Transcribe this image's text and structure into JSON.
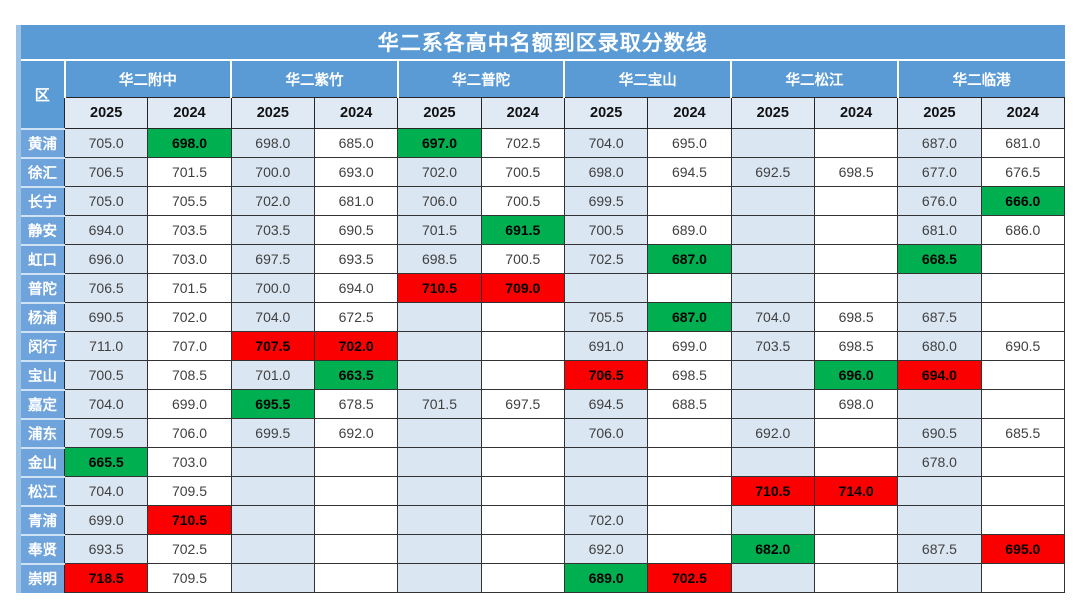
{
  "title": "华二系各高中名额到区录取分数线",
  "colors": {
    "header_blue": "#5b9bd5",
    "district_blue": "#6fa3dc",
    "year_blue": "#e0eaf5",
    "light_blue": "#dae6f2",
    "green": "#00b050",
    "red": "#fb0000",
    "text_dark": "#3f3f3f"
  },
  "table": {
    "corner_label": "区",
    "schools": [
      "华二附中",
      "华二紫竹",
      "华二普陀",
      "华二宝山",
      "华二松江",
      "华二临港"
    ],
    "year_labels": [
      "2025",
      "2024"
    ],
    "rows": [
      {
        "district": "黄浦",
        "cells": [
          {
            "v": "705.0"
          },
          {
            "v": "698.0",
            "hl": "green"
          },
          {
            "v": "698.0"
          },
          {
            "v": "685.0"
          },
          {
            "v": "697.0",
            "hl": "green"
          },
          {
            "v": "702.5"
          },
          {
            "v": "704.0"
          },
          {
            "v": "695.0"
          },
          {
            "v": ""
          },
          {
            "v": ""
          },
          {
            "v": "687.0"
          },
          {
            "v": "681.0"
          }
        ]
      },
      {
        "district": "徐汇",
        "cells": [
          {
            "v": "706.5"
          },
          {
            "v": "701.5"
          },
          {
            "v": "700.0"
          },
          {
            "v": "693.0"
          },
          {
            "v": "702.0"
          },
          {
            "v": "700.5"
          },
          {
            "v": "698.0"
          },
          {
            "v": "694.5"
          },
          {
            "v": "692.5"
          },
          {
            "v": "698.5"
          },
          {
            "v": "677.0"
          },
          {
            "v": "676.5"
          }
        ]
      },
      {
        "district": "长宁",
        "cells": [
          {
            "v": "705.0"
          },
          {
            "v": "705.5"
          },
          {
            "v": "702.0"
          },
          {
            "v": "681.0"
          },
          {
            "v": "706.0"
          },
          {
            "v": "700.5"
          },
          {
            "v": "699.5"
          },
          {
            "v": ""
          },
          {
            "v": ""
          },
          {
            "v": ""
          },
          {
            "v": "676.0"
          },
          {
            "v": "666.0",
            "hl": "green"
          }
        ]
      },
      {
        "district": "静安",
        "cells": [
          {
            "v": "694.0"
          },
          {
            "v": "703.5"
          },
          {
            "v": "703.5"
          },
          {
            "v": "690.5"
          },
          {
            "v": "701.5"
          },
          {
            "v": "691.5",
            "hl": "green"
          },
          {
            "v": "700.5"
          },
          {
            "v": "689.0"
          },
          {
            "v": ""
          },
          {
            "v": ""
          },
          {
            "v": "681.0"
          },
          {
            "v": "686.0"
          }
        ]
      },
      {
        "district": "虹口",
        "cells": [
          {
            "v": "696.0"
          },
          {
            "v": "703.0"
          },
          {
            "v": "697.5"
          },
          {
            "v": "693.5"
          },
          {
            "v": "698.5"
          },
          {
            "v": "700.5"
          },
          {
            "v": "702.5"
          },
          {
            "v": "687.0",
            "hl": "green"
          },
          {
            "v": ""
          },
          {
            "v": ""
          },
          {
            "v": "668.5",
            "hl": "green"
          },
          {
            "v": ""
          }
        ]
      },
      {
        "district": "普陀",
        "cells": [
          {
            "v": "706.5"
          },
          {
            "v": "701.5"
          },
          {
            "v": "700.0"
          },
          {
            "v": "694.0"
          },
          {
            "v": "710.5",
            "hl": "red"
          },
          {
            "v": "709.0",
            "hl": "red"
          },
          {
            "v": ""
          },
          {
            "v": ""
          },
          {
            "v": ""
          },
          {
            "v": ""
          },
          {
            "v": ""
          },
          {
            "v": ""
          }
        ]
      },
      {
        "district": "杨浦",
        "cells": [
          {
            "v": "690.5"
          },
          {
            "v": "702.0"
          },
          {
            "v": "704.0"
          },
          {
            "v": "672.5"
          },
          {
            "v": ""
          },
          {
            "v": ""
          },
          {
            "v": "705.5"
          },
          {
            "v": "687.0",
            "hl": "green"
          },
          {
            "v": "704.0"
          },
          {
            "v": "698.5"
          },
          {
            "v": "687.5"
          },
          {
            "v": ""
          }
        ]
      },
      {
        "district": "闵行",
        "cells": [
          {
            "v": "711.0"
          },
          {
            "v": "707.0"
          },
          {
            "v": "707.5",
            "hl": "red"
          },
          {
            "v": "702.0",
            "hl": "red"
          },
          {
            "v": ""
          },
          {
            "v": ""
          },
          {
            "v": "691.0"
          },
          {
            "v": "699.0"
          },
          {
            "v": "703.5"
          },
          {
            "v": "698.5"
          },
          {
            "v": "680.0"
          },
          {
            "v": "690.5"
          }
        ]
      },
      {
        "district": "宝山",
        "cells": [
          {
            "v": "700.5"
          },
          {
            "v": "708.5"
          },
          {
            "v": "701.0"
          },
          {
            "v": "663.5",
            "hl": "green"
          },
          {
            "v": ""
          },
          {
            "v": ""
          },
          {
            "v": "706.5",
            "hl": "red"
          },
          {
            "v": "698.5"
          },
          {
            "v": ""
          },
          {
            "v": "696.0",
            "hl": "green"
          },
          {
            "v": "694.0",
            "hl": "red"
          },
          {
            "v": ""
          }
        ]
      },
      {
        "district": "嘉定",
        "cells": [
          {
            "v": "704.0"
          },
          {
            "v": "699.0"
          },
          {
            "v": "695.5",
            "hl": "green"
          },
          {
            "v": "678.5"
          },
          {
            "v": "701.5"
          },
          {
            "v": "697.5"
          },
          {
            "v": "694.5"
          },
          {
            "v": "688.5"
          },
          {
            "v": ""
          },
          {
            "v": "698.0"
          },
          {
            "v": ""
          },
          {
            "v": ""
          }
        ]
      },
      {
        "district": "浦东",
        "cells": [
          {
            "v": "709.5"
          },
          {
            "v": "706.0"
          },
          {
            "v": "699.5"
          },
          {
            "v": "692.0"
          },
          {
            "v": ""
          },
          {
            "v": ""
          },
          {
            "v": "706.0"
          },
          {
            "v": ""
          },
          {
            "v": "692.0"
          },
          {
            "v": ""
          },
          {
            "v": "690.5"
          },
          {
            "v": "685.5"
          }
        ]
      },
      {
        "district": "金山",
        "cells": [
          {
            "v": "665.5",
            "hl": "green"
          },
          {
            "v": "703.0"
          },
          {
            "v": ""
          },
          {
            "v": ""
          },
          {
            "v": ""
          },
          {
            "v": ""
          },
          {
            "v": ""
          },
          {
            "v": ""
          },
          {
            "v": ""
          },
          {
            "v": ""
          },
          {
            "v": "678.0"
          },
          {
            "v": ""
          }
        ]
      },
      {
        "district": "松江",
        "cells": [
          {
            "v": "704.0"
          },
          {
            "v": "709.5"
          },
          {
            "v": ""
          },
          {
            "v": ""
          },
          {
            "v": ""
          },
          {
            "v": ""
          },
          {
            "v": ""
          },
          {
            "v": ""
          },
          {
            "v": "710.5",
            "hl": "red"
          },
          {
            "v": "714.0",
            "hl": "red"
          },
          {
            "v": ""
          },
          {
            "v": ""
          }
        ]
      },
      {
        "district": "青浦",
        "cells": [
          {
            "v": "699.0"
          },
          {
            "v": "710.5",
            "hl": "red"
          },
          {
            "v": ""
          },
          {
            "v": ""
          },
          {
            "v": ""
          },
          {
            "v": ""
          },
          {
            "v": "702.0"
          },
          {
            "v": ""
          },
          {
            "v": ""
          },
          {
            "v": ""
          },
          {
            "v": ""
          },
          {
            "v": ""
          }
        ]
      },
      {
        "district": "奉贤",
        "cells": [
          {
            "v": "693.5"
          },
          {
            "v": "702.5"
          },
          {
            "v": ""
          },
          {
            "v": ""
          },
          {
            "v": ""
          },
          {
            "v": ""
          },
          {
            "v": "692.0"
          },
          {
            "v": ""
          },
          {
            "v": "682.0",
            "hl": "green"
          },
          {
            "v": ""
          },
          {
            "v": "687.5"
          },
          {
            "v": "695.0",
            "hl": "red"
          }
        ]
      },
      {
        "district": "崇明",
        "cells": [
          {
            "v": "718.5",
            "hl": "red"
          },
          {
            "v": "709.5"
          },
          {
            "v": ""
          },
          {
            "v": ""
          },
          {
            "v": ""
          },
          {
            "v": ""
          },
          {
            "v": "689.0",
            "hl": "green"
          },
          {
            "v": "702.5",
            "hl": "red"
          },
          {
            "v": ""
          },
          {
            "v": ""
          },
          {
            "v": ""
          },
          {
            "v": ""
          }
        ]
      }
    ]
  }
}
